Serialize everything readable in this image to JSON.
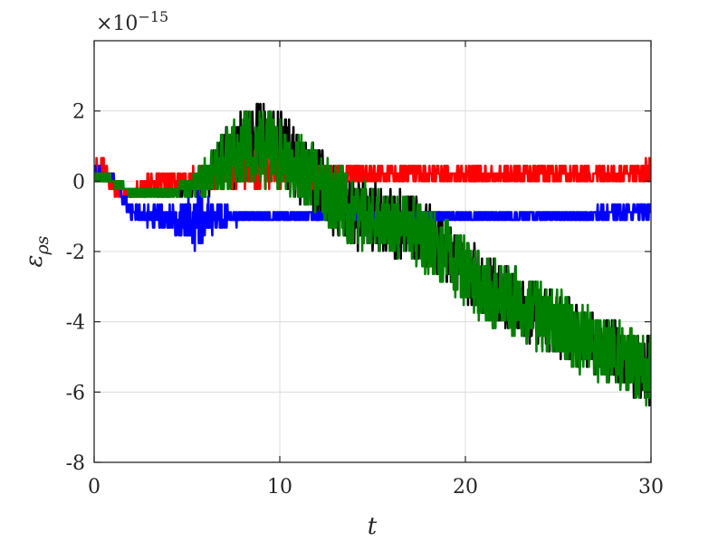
{
  "chart_data": {
    "type": "line",
    "title": "",
    "xlabel": "t",
    "ylabel_main": "ε",
    "ylabel_sub": "ρs",
    "exponent_prefix": "×10",
    "exponent_power": "−15",
    "xlim": [
      0,
      30
    ],
    "ylim": [
      -8,
      4
    ],
    "xticks": [
      0,
      10,
      20,
      30
    ],
    "xtick_labels": [
      "0",
      "10",
      "20",
      "30"
    ],
    "yticks": [
      -8,
      -6,
      -4,
      -2,
      0,
      2
    ],
    "ytick_labels": [
      "-8",
      "-6",
      "-4",
      "-2",
      "0",
      "2"
    ],
    "grid": true,
    "legend": "none",
    "series": [
      {
        "color": "#000000",
        "x": [
          0,
          1,
          2,
          3,
          4,
          5,
          6,
          7,
          8,
          9,
          10,
          11,
          12,
          13,
          14,
          15,
          16,
          17,
          18,
          19,
          20,
          21,
          22,
          23,
          24,
          25,
          26,
          27,
          28,
          29,
          30
        ],
        "y": [
          0.2,
          0.0,
          -0.3,
          -0.3,
          -0.3,
          -0.3,
          0.0,
          0.6,
          1.0,
          1.2,
          1.0,
          0.4,
          0.0,
          -0.6,
          -0.9,
          -1.0,
          -1.2,
          -1.3,
          -1.5,
          -2.0,
          -2.5,
          -2.9,
          -3.2,
          -3.5,
          -3.8,
          -4.1,
          -4.3,
          -4.6,
          -4.9,
          -5.2,
          -5.4
        ],
        "noise": [
          0.1,
          0.1,
          0.1,
          0.1,
          0.1,
          0.1,
          0.5,
          0.9,
          1.1,
          1.1,
          1.0,
          1.0,
          1.0,
          1.0,
          1.0,
          1.0,
          1.0,
          0.9,
          0.9,
          0.9,
          0.9,
          0.9,
          0.9,
          0.9,
          0.9,
          0.9,
          0.9,
          0.9,
          0.9,
          0.9,
          0.9
        ]
      },
      {
        "color": "#ff0000",
        "x": [
          0,
          0.5,
          1,
          1.5,
          2,
          3,
          4,
          5,
          6,
          7,
          8,
          9,
          10,
          11,
          12,
          13,
          14,
          15,
          16,
          17,
          18,
          19,
          20,
          21,
          22,
          23,
          24,
          25,
          26,
          27,
          28,
          29,
          30
        ],
        "y": [
          0.3,
          0.3,
          0.0,
          -0.3,
          -0.3,
          -0.1,
          0.0,
          0.0,
          0.0,
          0.2,
          0.3,
          0.3,
          0.3,
          0.2,
          0.1,
          0.2,
          0.2,
          0.2,
          0.2,
          0.2,
          0.2,
          0.2,
          0.2,
          0.2,
          0.2,
          0.2,
          0.2,
          0.2,
          0.2,
          0.2,
          0.2,
          0.2,
          0.3
        ],
        "noise": [
          0.35,
          0.35,
          0.3,
          0.25,
          0.2,
          0.25,
          0.3,
          0.35,
          0.4,
          0.5,
          0.55,
          0.55,
          0.5,
          0.45,
          0.4,
          0.35,
          0.3,
          0.3,
          0.25,
          0.25,
          0.25,
          0.25,
          0.25,
          0.25,
          0.25,
          0.25,
          0.25,
          0.25,
          0.25,
          0.25,
          0.25,
          0.25,
          0.3
        ]
      },
      {
        "color": "#0000ff",
        "x": [
          0,
          0.5,
          1,
          1.5,
          2,
          3,
          4,
          5,
          5.5,
          6,
          7,
          8,
          9,
          10,
          12,
          14,
          16,
          18,
          20,
          22,
          24,
          26,
          28,
          30
        ],
        "y": [
          0.2,
          0.2,
          0.1,
          -0.4,
          -0.9,
          -1.0,
          -1.1,
          -1.1,
          -1.1,
          -1.0,
          -1.0,
          -1.0,
          -1.0,
          -1.0,
          -1.0,
          -1.0,
          -1.0,
          -1.0,
          -1.0,
          -1.0,
          -1.0,
          -1.0,
          -0.9,
          -0.8
        ],
        "noise": [
          0.2,
          0.2,
          0.2,
          0.2,
          0.2,
          0.3,
          0.35,
          0.6,
          0.9,
          0.6,
          0.3,
          0.2,
          0.2,
          0.2,
          0.2,
          0.2,
          0.2,
          0.2,
          0.2,
          0.2,
          0.2,
          0.2,
          0.2,
          0.25
        ]
      },
      {
        "color": "#008000",
        "x": [
          0,
          1,
          2,
          3,
          4,
          5,
          6,
          7,
          8,
          9,
          10,
          11,
          12,
          13,
          14,
          15,
          16,
          17,
          18,
          19,
          20,
          21,
          22,
          23,
          24,
          25,
          26,
          27,
          28,
          29,
          30
        ],
        "y": [
          0.2,
          0.0,
          -0.3,
          -0.3,
          -0.3,
          -0.2,
          0.1,
          0.6,
          1.0,
          1.0,
          0.8,
          0.4,
          0.0,
          -0.5,
          -0.9,
          -1.0,
          -1.2,
          -1.4,
          -1.7,
          -2.1,
          -2.6,
          -3.0,
          -3.3,
          -3.6,
          -3.9,
          -4.1,
          -4.4,
          -4.7,
          -4.9,
          -5.2,
          -5.4
        ],
        "noise": [
          0.1,
          0.1,
          0.1,
          0.15,
          0.15,
          0.2,
          0.5,
          0.9,
          1.1,
          1.1,
          1.0,
          1.0,
          1.0,
          1.0,
          1.0,
          1.0,
          1.0,
          1.0,
          1.0,
          1.0,
          1.0,
          1.0,
          1.0,
          1.0,
          1.0,
          1.0,
          1.0,
          1.0,
          1.0,
          1.0,
          1.0
        ]
      }
    ]
  }
}
